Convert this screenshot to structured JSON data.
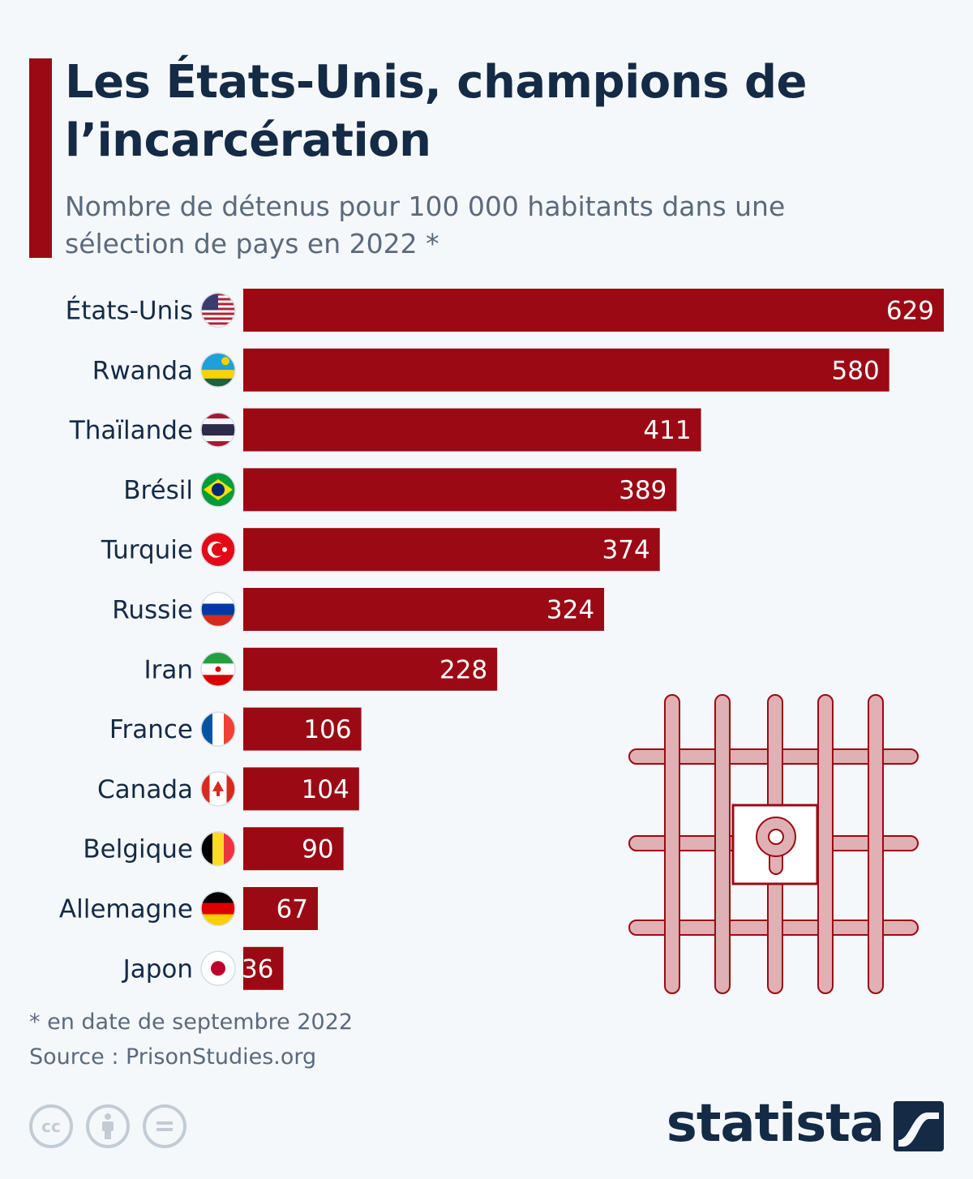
{
  "header": {
    "title": "Les États-Unis, champions de l’incarcération",
    "subtitle": "Nombre de détenus pour 100 000 habitants dans une sélection de pays en 2022 *"
  },
  "chart_data": {
    "type": "bar",
    "orientation": "horizontal",
    "title": "Les États-Unis, champions de l’incarcération",
    "subtitle": "Nombre de détenus pour 100 000 habitants dans une sélection de pays en 2022 *",
    "categories": [
      "États-Unis",
      "Rwanda",
      "Thaïlande",
      "Brésil",
      "Turquie",
      "Russie",
      "Iran",
      "France",
      "Canada",
      "Belgique",
      "Allemagne",
      "Japon"
    ],
    "values": [
      629,
      580,
      411,
      389,
      374,
      324,
      228,
      106,
      104,
      90,
      67,
      36
    ],
    "flags": [
      "us-flag-icon",
      "rwanda-flag-icon",
      "thailand-flag-icon",
      "brazil-flag-icon",
      "turkey-flag-icon",
      "russia-flag-icon",
      "iran-flag-icon",
      "france-flag-icon",
      "canada-flag-icon",
      "belgium-flag-icon",
      "germany-flag-icon",
      "japan-flag-icon"
    ],
    "xlim": [
      0,
      629
    ],
    "xlabel": "",
    "ylabel": "",
    "grid": false,
    "legend": "none",
    "bar_color": "#9b0a14"
  },
  "footer": {
    "note": "* en date de septembre 2022",
    "source": "Source : PrisonStudies.org",
    "license_icons": [
      "cc-icon",
      "attribution-icon",
      "no-derivatives-icon"
    ],
    "brand": "statista"
  },
  "colors": {
    "accent": "#9b0a14",
    "title": "#142a45",
    "subtitle": "#5a6a7c",
    "background": "#f5f8fb",
    "jail_icon_fill": "#dfb0b4",
    "jail_icon_stroke": "#9b0a14"
  },
  "decor": {
    "illustration": "jail-cell-bars-icon",
    "brand_logo": "statista-logo-icon"
  }
}
